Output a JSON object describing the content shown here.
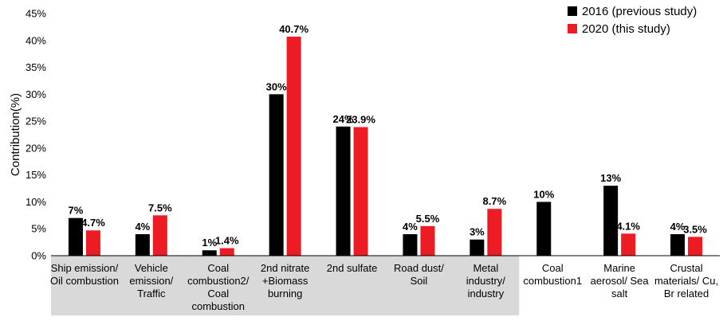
{
  "chart_data": {
    "type": "bar",
    "title": "",
    "xlabel": "",
    "ylabel": "Contribution(%)",
    "ylim": [
      0,
      45
    ],
    "yticks": [
      "0%",
      "5%",
      "10%",
      "15%",
      "20%",
      "25%",
      "30%",
      "35%",
      "40%",
      "45%"
    ],
    "grid": false,
    "legend_position": "top-right",
    "categories": [
      [
        "Ship emission/",
        "Oil combustion"
      ],
      [
        "Vehicle",
        "emission/",
        "Traffic"
      ],
      [
        "Coal",
        "combustion2/",
        "Coal",
        "combustion"
      ],
      [
        "2nd nitrate",
        "+Biomass",
        "burning"
      ],
      [
        "2nd sulfate"
      ],
      [
        "Road dust/",
        "Soil"
      ],
      [
        "Metal",
        "industry/",
        "industry"
      ],
      [
        "Coal",
        "combustion1"
      ],
      [
        "Marine",
        "aerosol/ Sea",
        "salt"
      ],
      [
        "Crustal",
        "materials/ Cu,",
        "Br related"
      ]
    ],
    "shaded_categories": 7,
    "series": [
      {
        "name": "2016 (previous study)",
        "color": "#000000",
        "values": [
          7,
          4,
          1,
          30,
          24,
          4,
          3,
          10,
          13,
          4
        ],
        "labels": [
          "7%",
          "4%",
          "1%",
          "30%",
          "24%",
          "4%",
          "3%",
          "10%",
          "13%",
          "4%"
        ]
      },
      {
        "name": "2020 (this study)",
        "color": "#ED1C24",
        "values": [
          4.7,
          7.5,
          1.4,
          40.7,
          23.9,
          5.5,
          8.7,
          null,
          4.1,
          3.5
        ],
        "labels": [
          "4.7%",
          "7.5%",
          "1.4%",
          "40.7%",
          "23.9%",
          "5.5%",
          "8.7%",
          "",
          "4.1%",
          "3.5%"
        ]
      }
    ]
  }
}
